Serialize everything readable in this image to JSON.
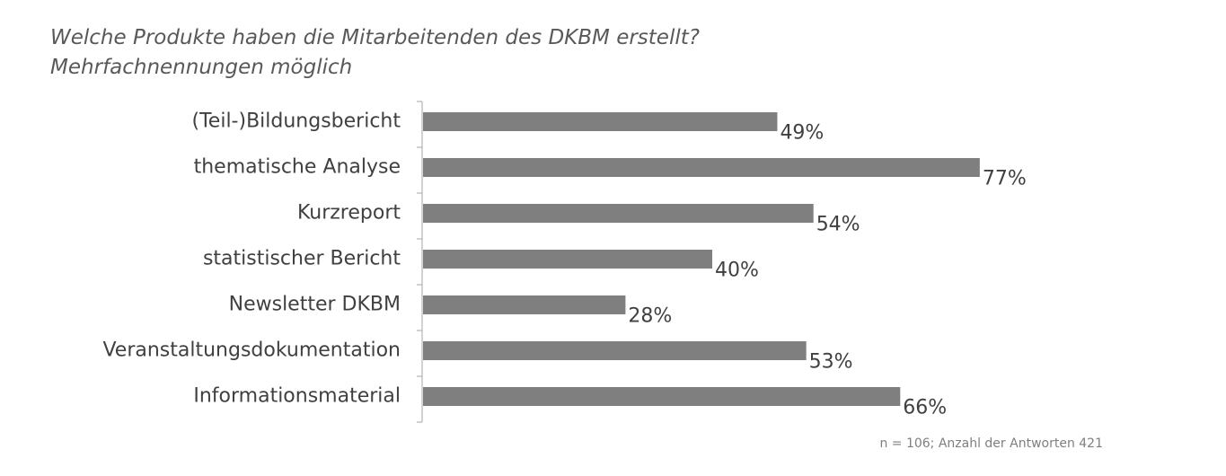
{
  "chart_data": {
    "type": "bar",
    "orientation": "horizontal",
    "title": "Welche Produkte haben die Mitarbeitenden des DKBM erstellt?",
    "subtitle": "Mehrfachnennungen möglich",
    "categories": [
      "(Teil-)Bildungsbericht",
      "thematische Analyse",
      "Kurzreport",
      "statistischer Bericht",
      "Newsletter DKBM",
      "Veranstaltungsdokumentation",
      "Informationsmaterial"
    ],
    "values": [
      49,
      77,
      54,
      40,
      28,
      53,
      66
    ],
    "value_labels": [
      "49%",
      "77%",
      "54%",
      "40%",
      "28%",
      "53%",
      "66%"
    ],
    "value_unit": "%",
    "xlim": [
      0,
      100
    ],
    "grid": false,
    "legend": "none",
    "bar_color": "#7f7f7f",
    "footnote": "n = 106; Anzahl der Antworten 421"
  }
}
